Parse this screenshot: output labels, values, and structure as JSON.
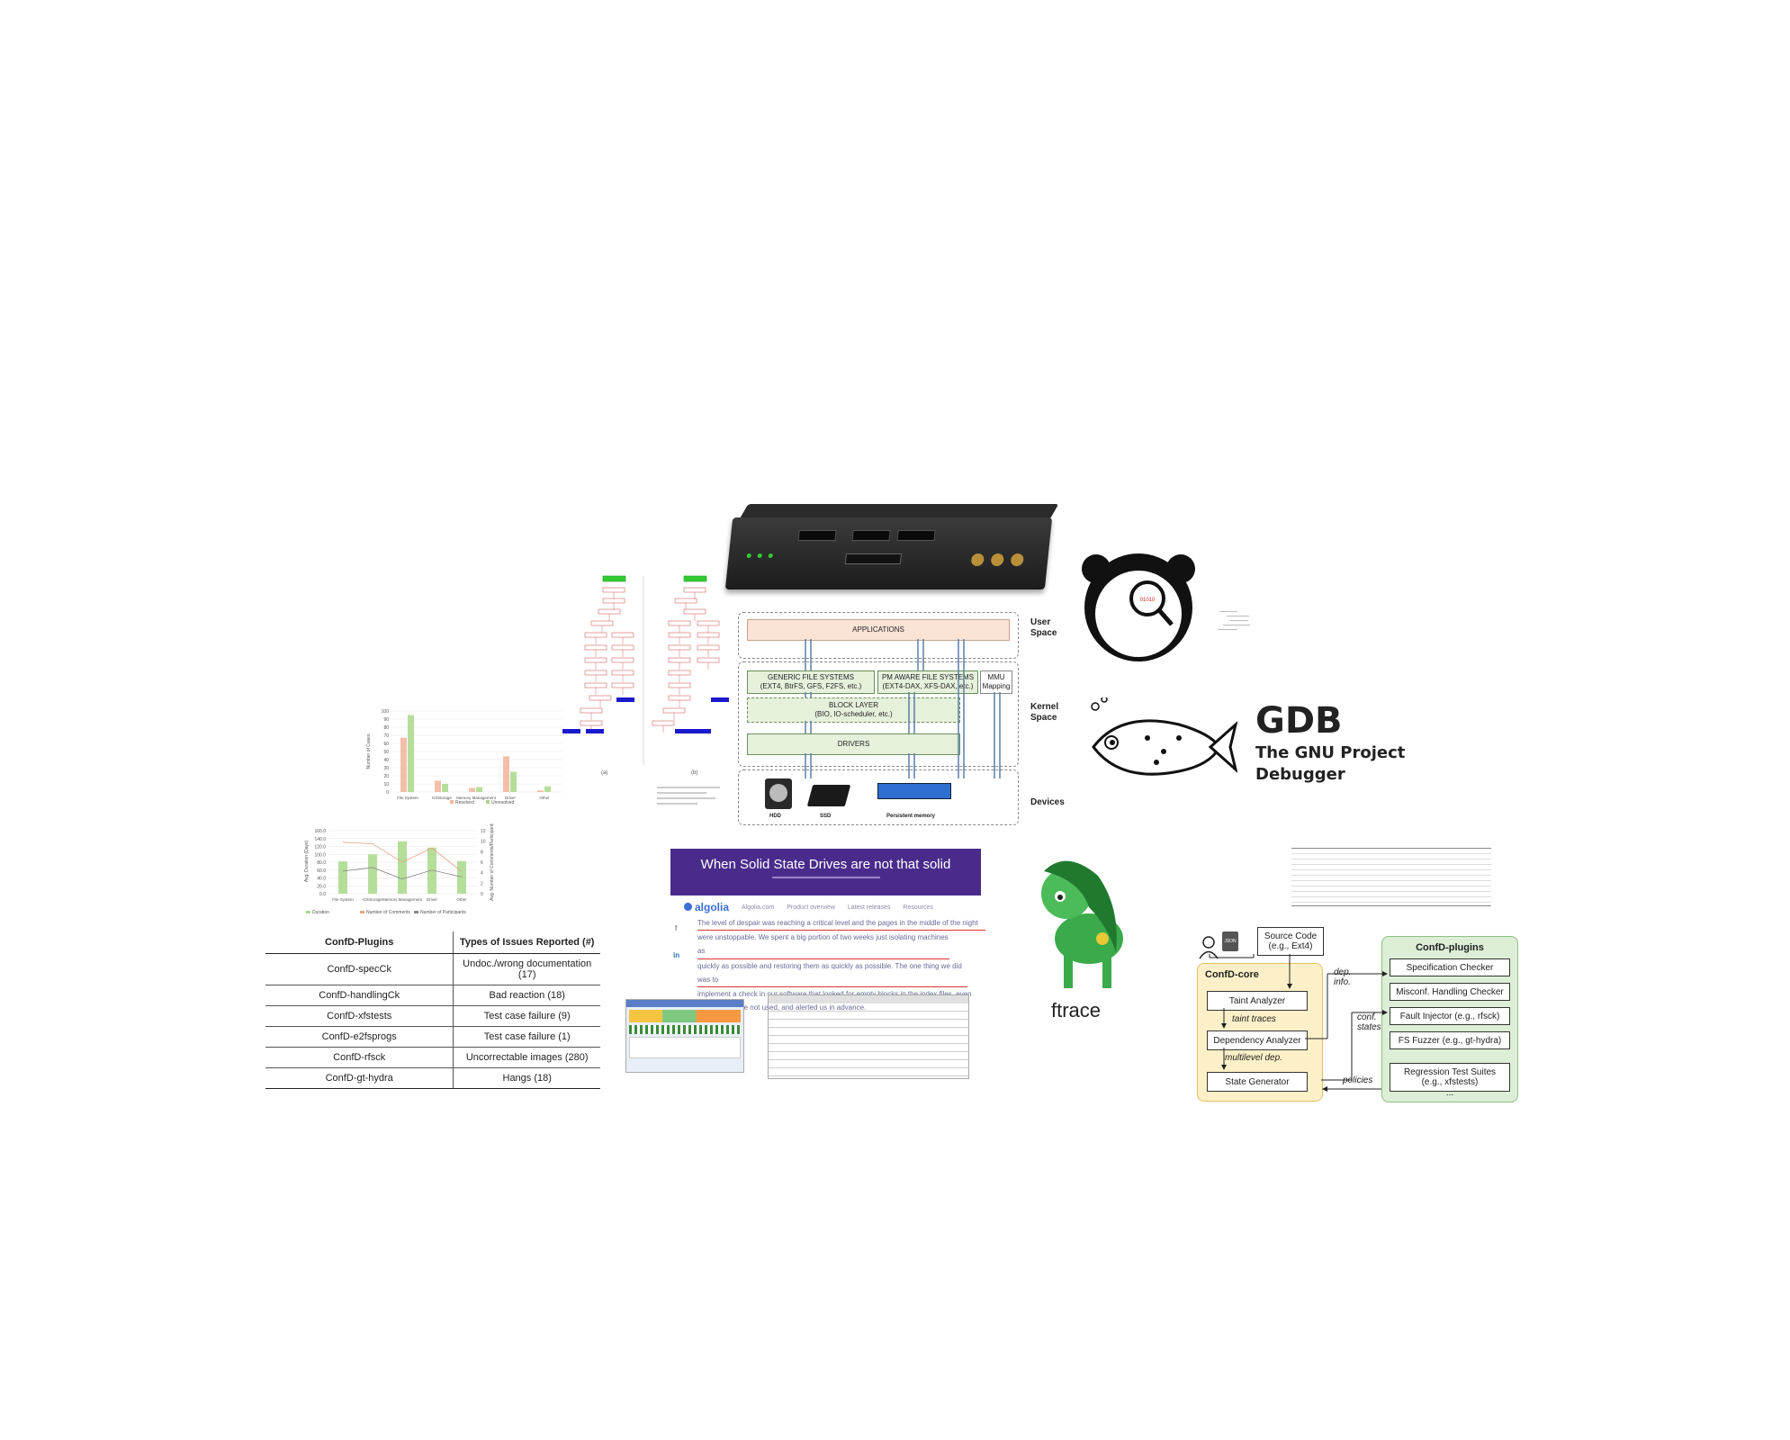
{
  "storage_stack": {
    "applications": "APPLICATIONS",
    "generic_fs": [
      "GENERIC FILE SYSTEMS",
      "(EXT4, BtrFS, GFS, F2FS, etc.)"
    ],
    "pm_fs": [
      "PM AWARE FILE SYSTEMS",
      "(EXT4-DAX, XFS-DAX, etc.)"
    ],
    "mmu": [
      "MMU",
      "Mapping"
    ],
    "block_layer": [
      "BLOCK LAYER",
      "(BIO, IO-scheduler, etc.)"
    ],
    "drivers": "DRIVERS",
    "user_space": [
      "User",
      "Space"
    ],
    "kernel_space": [
      "Kernel",
      "Space"
    ],
    "devices_label": "Devices",
    "hdd": "HDD",
    "ssd": "SSD",
    "pm": "Persistent memory"
  },
  "gdb": {
    "title": "GDB",
    "line1": "The GNU Project",
    "line2": "Debugger"
  },
  "ftrace": "ftrace",
  "blog": {
    "title": "When Solid State Drives are not that solid",
    "brand": "algolia",
    "nav": [
      "Algolia.com",
      "Product overview",
      "Latest releases",
      "Resources"
    ],
    "para": [
      "The level of despair was reaching a critical level and the pages in the middle of the night",
      "were unstoppable. We spent a big portion of two weeks just isolating machines as",
      "quickly as possible and restoring them as quickly as possible. The one thing we did was to",
      "implement a check in our software that looked for empty blocks in the index files, even",
      "when they were not used, and alerted us in advance."
    ]
  },
  "plugins_table": {
    "headers": [
      "ConfD-Plugins",
      "Types of Issues Reported (#)"
    ],
    "rows": [
      [
        "ConfD-specCk",
        "Undoc./wrong documentation (17)"
      ],
      [
        "ConfD-handlingCk",
        "Bad reaction (18)"
      ],
      [
        "ConfD-xfstests",
        "Test case failure (9)"
      ],
      [
        "ConfD-e2fsprogs",
        "Test case failure (1)"
      ],
      [
        "ConfD-rfsck",
        "Uncorrectable images (280)"
      ],
      [
        "ConfD-gt-hydra",
        "Hangs (18)"
      ]
    ]
  },
  "confd": {
    "source_code": [
      "Source Code",
      "(e.g., Ext4)"
    ],
    "core_title": "ConfD-core",
    "taint": "Taint Analyzer",
    "taint_traces": "taint traces",
    "dependency": "Dependency Analyzer",
    "multilevel": "multilevel dep.",
    "state_gen": "State Generator",
    "dep_info": [
      "dep.",
      "info."
    ],
    "conf_states": [
      "conf.",
      "states"
    ],
    "policies": "policies",
    "plugins_title": "ConfD-plugins",
    "plugins": [
      "Specification Checker",
      "Misconf. Handling Checker",
      "Fault Injector (e.g., rfsck)",
      "FS Fuzzer (e.g., gt-hydra)"
    ],
    "regression": [
      "Regression Test Suites",
      "(e.g., xfstests)"
    ],
    "ellipsis": "...",
    "json_badge": "JSON"
  },
  "chart1": {
    "type": "bar",
    "categories": [
      "File System",
      "IO/Storage",
      "Memory Management",
      "Driver",
      "Other"
    ],
    "series": [
      {
        "name": "Resolved",
        "values": [
          67,
          14,
          5,
          44,
          2
        ]
      },
      {
        "name": "Unresolved",
        "values": [
          95,
          10,
          6,
          25,
          7
        ]
      }
    ],
    "ylabel": "Number of Cases",
    "yticks": [
      "100",
      "90",
      "80",
      "70",
      "60",
      "50",
      "40",
      "30",
      "20",
      "10",
      "0"
    ],
    "colors": [
      "#f2b49a",
      "#a8d88a"
    ]
  },
  "chart2": {
    "type": "bar",
    "categories": [
      "File System",
      "IO/Storage",
      "Memory Management",
      "Driver",
      "Other"
    ],
    "series": [
      {
        "name": "Duration",
        "values": [
          82,
          100,
          133,
          117,
          83
        ]
      }
    ],
    "lines": [
      {
        "name": "Number of Comments",
        "values": [
          9.8,
          9.5,
          6.0,
          8.7,
          4.2
        ]
      },
      {
        "name": "Number of Participants",
        "values": [
          4.3,
          5.0,
          2.8,
          4.5,
          3.2
        ]
      }
    ],
    "ylabel": "Avg. Duration (Days)",
    "y2label": "Avg. Number of Comments/Participants",
    "yticks": [
      "160.0",
      "140.0",
      "120.0",
      "100.0",
      "80.0",
      "60.0",
      "40.0",
      "20.0",
      "0.0"
    ],
    "y2ticks": [
      "12",
      "10",
      "8",
      "6",
      "4",
      "2",
      "0"
    ],
    "colors": [
      "#a8d88a",
      "#e8a480",
      "#888888"
    ]
  },
  "flow_labels": [
    "(a)",
    "(b)"
  ]
}
